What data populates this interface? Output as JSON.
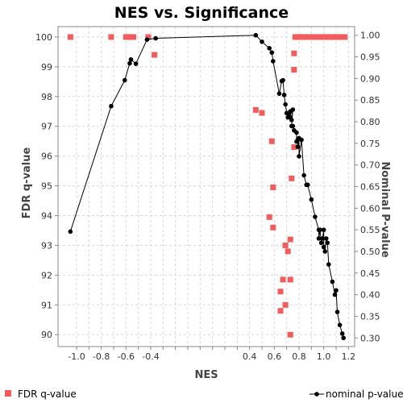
{
  "chart_data": {
    "type": "scatter",
    "title": "NES vs. Significance",
    "xlabel": "NES",
    "ylabel_left": "FDR q-value",
    "ylabel_right": "Nominal P-value",
    "xlim": [
      -1.15,
      1.25
    ],
    "ylim_left": [
      89.6,
      100.35
    ],
    "ylim_right": [
      0.28,
      1.02
    ],
    "x_ticks": [
      "-1.0",
      "-0.9",
      "-0.8",
      "-0.7",
      "-0.6",
      "-0.5",
      "-0.4",
      "-0.3",
      "-0.2",
      "-0.1",
      "0.0",
      "0.1",
      "0.2",
      "0.3",
      "0.4",
      "0.5",
      "0.6",
      "0.7",
      "0.8",
      "0.9",
      "1.0",
      "1.1",
      "1.2"
    ],
    "x_tick_labels": [
      "-1.0",
      "",
      "-0.8",
      "",
      "-0.6",
      "",
      "-0.4",
      "",
      "",
      "",
      "",
      "",
      "",
      "",
      "0.4",
      "",
      "0.6",
      "",
      "0.8",
      "",
      "1.0",
      "",
      "1.2"
    ],
    "y_left_ticks": [
      "90",
      "91",
      "92",
      "93",
      "94",
      "95",
      "96",
      "97",
      "98",
      "99",
      "100"
    ],
    "y_right_ticks": [
      "0.30",
      "0.35",
      "0.40",
      "0.45",
      "0.50",
      "0.55",
      "0.60",
      "0.65",
      "0.70",
      "0.75",
      "0.80",
      "0.85",
      "0.90",
      "0.95",
      "1.00"
    ],
    "grid": true,
    "legend": [
      {
        "name": "FDR q-value",
        "position": "bottom-left"
      },
      {
        "name": "nominal p-value",
        "position": "bottom-right"
      }
    ],
    "series": [
      {
        "name": "FDR q-value",
        "axis": "left",
        "style": "square",
        "color": "#f25c5c",
        "points": [
          [
            -1.05,
            100.0
          ],
          [
            -0.72,
            100.0
          ],
          [
            -0.6,
            100.0
          ],
          [
            -0.58,
            100.0
          ],
          [
            -0.56,
            100.0
          ],
          [
            -0.54,
            100.0
          ],
          [
            -0.42,
            100.0
          ],
          [
            -0.37,
            99.4
          ],
          [
            0.45,
            97.55
          ],
          [
            0.5,
            97.45
          ],
          [
            0.58,
            96.5
          ],
          [
            0.56,
            93.95
          ],
          [
            0.59,
            93.6
          ],
          [
            0.59,
            94.95
          ],
          [
            0.65,
            91.45
          ],
          [
            0.67,
            91.85
          ],
          [
            0.65,
            90.8
          ],
          [
            0.69,
            91.0
          ],
          [
            0.71,
            92.8
          ],
          [
            0.69,
            93.0
          ],
          [
            0.73,
            93.2
          ],
          [
            0.73,
            91.85
          ],
          [
            0.73,
            90.0
          ],
          [
            0.76,
            98.9
          ],
          [
            0.76,
            99.45
          ],
          [
            0.76,
            96.3
          ],
          [
            0.74,
            95.25
          ],
          [
            0.77,
            100.0
          ],
          [
            0.79,
            100.0
          ],
          [
            0.8,
            100.0
          ],
          [
            0.82,
            100.0
          ],
          [
            0.84,
            100.0
          ],
          [
            0.86,
            100.0
          ],
          [
            0.88,
            100.0
          ],
          [
            0.9,
            100.0
          ],
          [
            0.93,
            100.0
          ],
          [
            0.96,
            100.0
          ],
          [
            0.98,
            100.0
          ],
          [
            1.0,
            100.0
          ],
          [
            1.02,
            100.0
          ],
          [
            1.04,
            100.0
          ],
          [
            1.06,
            100.0
          ],
          [
            1.08,
            100.0
          ],
          [
            1.1,
            100.0
          ],
          [
            1.12,
            100.0
          ],
          [
            1.14,
            100.0
          ],
          [
            1.16,
            100.0
          ],
          [
            1.17,
            100.0
          ]
        ]
      },
      {
        "name": "nominal p-value",
        "axis": "right",
        "style": "line-dot",
        "color": "#000000",
        "points": [
          [
            -1.05,
            0.546
          ],
          [
            -0.72,
            0.836
          ],
          [
            -0.61,
            0.896
          ],
          [
            -0.57,
            0.935
          ],
          [
            -0.56,
            0.944
          ],
          [
            -0.52,
            0.934
          ],
          [
            -0.43,
            0.99
          ],
          [
            -0.36,
            0.993
          ],
          [
            0.45,
            1.0
          ],
          [
            0.5,
            0.985
          ],
          [
            0.56,
            0.97
          ],
          [
            0.58,
            0.96
          ],
          [
            0.59,
            0.94
          ],
          [
            0.64,
            0.865
          ],
          [
            0.66,
            0.894
          ],
          [
            0.67,
            0.896
          ],
          [
            0.68,
            0.862
          ],
          [
            0.69,
            0.84
          ],
          [
            0.7,
            0.82
          ],
          [
            0.71,
            0.81
          ],
          [
            0.72,
            0.818
          ],
          [
            0.73,
            0.824
          ],
          [
            0.73,
            0.81
          ],
          [
            0.74,
            0.804
          ],
          [
            0.75,
            0.828
          ],
          [
            0.74,
            0.79
          ],
          [
            0.75,
            0.79
          ],
          [
            0.76,
            0.78
          ],
          [
            0.78,
            0.775
          ],
          [
            0.78,
            0.754
          ],
          [
            0.79,
            0.758
          ],
          [
            0.79,
            0.742
          ],
          [
            0.8,
            0.762
          ],
          [
            0.8,
            0.72
          ],
          [
            0.82,
            0.758
          ],
          [
            0.84,
            0.676
          ],
          [
            0.86,
            0.654
          ],
          [
            0.87,
            0.654
          ],
          [
            0.9,
            0.62
          ],
          [
            0.93,
            0.58
          ],
          [
            0.96,
            0.55
          ],
          [
            0.96,
            0.53
          ],
          [
            0.97,
            0.55
          ],
          [
            0.98,
            0.52
          ],
          [
            0.99,
            0.53
          ],
          [
            1.0,
            0.55
          ],
          [
            1.0,
            0.51
          ],
          [
            1.01,
            0.5
          ],
          [
            1.02,
            0.53
          ],
          [
            1.03,
            0.52
          ],
          [
            1.04,
            0.47
          ],
          [
            1.07,
            0.43
          ],
          [
            1.09,
            0.4
          ],
          [
            1.1,
            0.41
          ],
          [
            1.11,
            0.36
          ],
          [
            1.13,
            0.33
          ],
          [
            1.15,
            0.31
          ],
          [
            1.16,
            0.3
          ]
        ]
      }
    ]
  }
}
